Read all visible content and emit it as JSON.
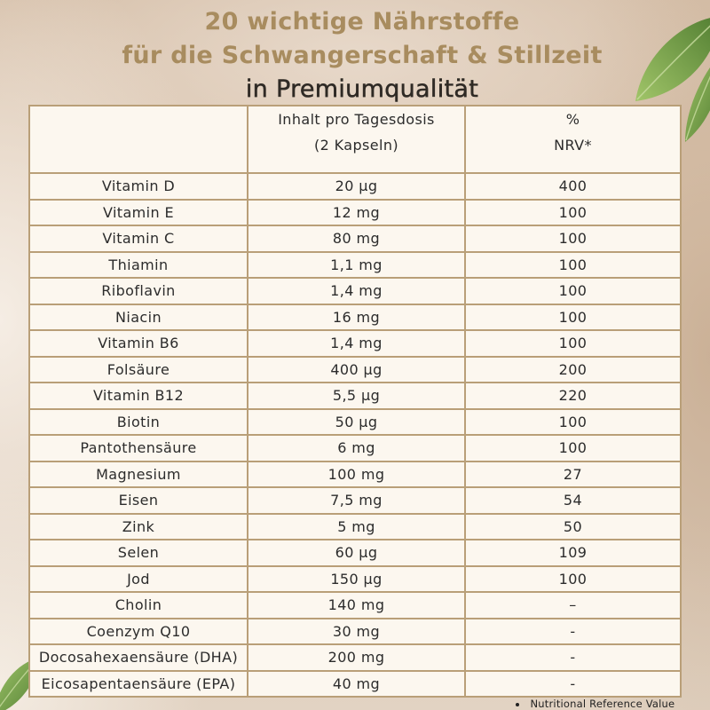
{
  "colors": {
    "title_gold": "#a88c5f",
    "title_dark": "#2f2a25",
    "table_border": "#b99f78",
    "table_background": "#fcf7ef",
    "table_text": "#2c2c2c",
    "leaf_dark": "#4a7a2b",
    "leaf_light": "#9ec565"
  },
  "title": {
    "line1": "20 wichtige Nährstoffe",
    "line2": "für die Schwangerschaft & Stillzeit",
    "line3": "in Premiumqualität"
  },
  "table": {
    "header": {
      "amount_line1": "Inhalt pro Tagesdosis",
      "amount_line2": "(2 Kapseln)",
      "nrv_line1": "%",
      "nrv_line2": "NRV*"
    },
    "rows": [
      {
        "nutrient": "Vitamin D",
        "amount": "20 µg",
        "nrv": "400"
      },
      {
        "nutrient": "Vitamin E",
        "amount": "12 mg",
        "nrv": "100"
      },
      {
        "nutrient": "Vitamin C",
        "amount": "80 mg",
        "nrv": "100"
      },
      {
        "nutrient": "Thiamin",
        "amount": "1,1 mg",
        "nrv": "100"
      },
      {
        "nutrient": "Riboflavin",
        "amount": "1,4 mg",
        "nrv": "100"
      },
      {
        "nutrient": "Niacin",
        "amount": "16 mg",
        "nrv": "100"
      },
      {
        "nutrient": "Vitamin B6",
        "amount": "1,4 mg",
        "nrv": "100"
      },
      {
        "nutrient": "Folsäure",
        "amount": "400 µg",
        "nrv": "200"
      },
      {
        "nutrient": "Vitamin B12",
        "amount": "5,5 µg",
        "nrv": "220"
      },
      {
        "nutrient": "Biotin",
        "amount": "50 µg",
        "nrv": "100"
      },
      {
        "nutrient": "Pantothensäure",
        "amount": "6 mg",
        "nrv": "100"
      },
      {
        "nutrient": "Magnesium",
        "amount": "100 mg",
        "nrv": "27"
      },
      {
        "nutrient": "Eisen",
        "amount": "7,5 mg",
        "nrv": "54"
      },
      {
        "nutrient": "Zink",
        "amount": "5 mg",
        "nrv": "50"
      },
      {
        "nutrient": "Selen",
        "amount": "60 µg",
        "nrv": "109"
      },
      {
        "nutrient": "Jod",
        "amount": "150 µg",
        "nrv": "100"
      },
      {
        "nutrient": "Cholin",
        "amount": "140 mg",
        "nrv": "–"
      },
      {
        "nutrient": "Coenzym Q10",
        "amount": "30 mg",
        "nrv": "-"
      },
      {
        "nutrient": "Docosahexaensäure (DHA)",
        "amount": "200 mg",
        "nrv": "-"
      },
      {
        "nutrient": "Eicosapentaensäure (EPA)",
        "amount": "40 mg",
        "nrv": "-"
      }
    ]
  },
  "footnote": "Nutritional Reference Value"
}
